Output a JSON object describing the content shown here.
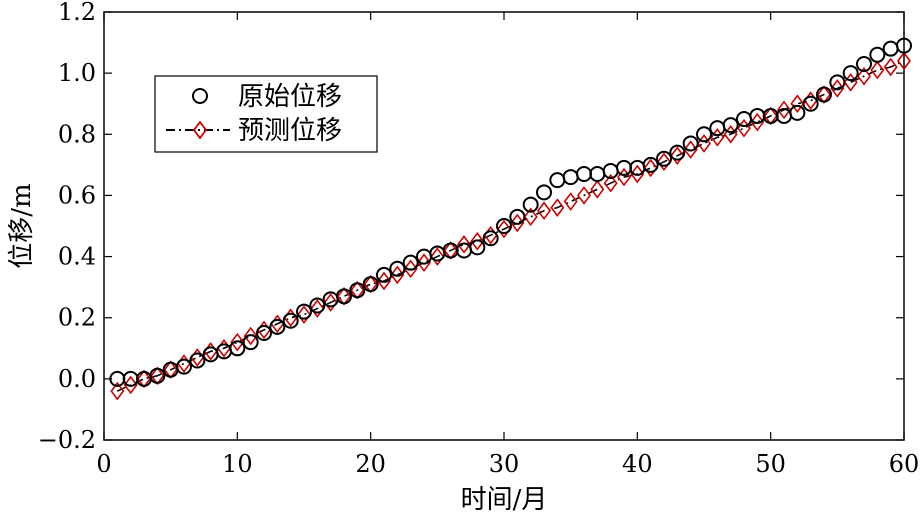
{
  "chart_data": {
    "type": "line",
    "title": "",
    "xlabel": "时间/月",
    "ylabel": "位移/m",
    "xlim": [
      0,
      60
    ],
    "ylim": [
      -0.2,
      1.2
    ],
    "xticks": [
      "0",
      "10",
      "20",
      "30",
      "40",
      "50",
      "60"
    ],
    "yticks": [
      "−0.2",
      "0.0",
      "0.2",
      "0.4",
      "0.6",
      "0.8",
      "1.0",
      "1.2"
    ],
    "grid": false,
    "legend_position": "top-left",
    "series": [
      {
        "name": "原始位移",
        "marker": "circle",
        "line": "none",
        "color": "#000000",
        "x": [
          1,
          2,
          3,
          4,
          5,
          6,
          7,
          8,
          9,
          10,
          11,
          12,
          13,
          14,
          15,
          16,
          17,
          18,
          19,
          20,
          21,
          22,
          23,
          24,
          25,
          26,
          27,
          28,
          29,
          30,
          31,
          32,
          33,
          34,
          35,
          36,
          37,
          38,
          39,
          40,
          41,
          42,
          43,
          44,
          45,
          46,
          47,
          48,
          49,
          50,
          51,
          52,
          53,
          54,
          55,
          56,
          57,
          58,
          59,
          60
        ],
        "y": [
          0.0,
          0.0,
          0.0,
          0.01,
          0.03,
          0.04,
          0.06,
          0.08,
          0.09,
          0.1,
          0.12,
          0.15,
          0.17,
          0.19,
          0.22,
          0.24,
          0.26,
          0.27,
          0.29,
          0.31,
          0.34,
          0.36,
          0.38,
          0.4,
          0.41,
          0.42,
          0.42,
          0.43,
          0.46,
          0.5,
          0.53,
          0.57,
          0.61,
          0.65,
          0.66,
          0.67,
          0.67,
          0.68,
          0.69,
          0.69,
          0.7,
          0.72,
          0.74,
          0.77,
          0.8,
          0.82,
          0.83,
          0.85,
          0.86,
          0.86,
          0.86,
          0.87,
          0.9,
          0.93,
          0.97,
          1.0,
          1.03,
          1.06,
          1.08,
          1.09
        ]
      },
      {
        "name": "预测位移",
        "marker": "diamond",
        "line": "dash-dot",
        "color": "#cc0000",
        "line_color": "#000000",
        "x": [
          1,
          2,
          3,
          4,
          5,
          6,
          7,
          8,
          9,
          10,
          11,
          12,
          13,
          14,
          15,
          16,
          17,
          18,
          19,
          20,
          21,
          22,
          23,
          24,
          25,
          26,
          27,
          28,
          29,
          30,
          31,
          32,
          33,
          34,
          35,
          36,
          37,
          38,
          39,
          40,
          41,
          42,
          43,
          44,
          45,
          46,
          47,
          48,
          49,
          50,
          51,
          52,
          53,
          54,
          55,
          56,
          57,
          58,
          59,
          60
        ],
        "y": [
          -0.04,
          -0.02,
          0.0,
          0.01,
          0.03,
          0.05,
          0.07,
          0.09,
          0.1,
          0.12,
          0.14,
          0.16,
          0.18,
          0.2,
          0.21,
          0.23,
          0.25,
          0.27,
          0.29,
          0.31,
          0.32,
          0.34,
          0.36,
          0.38,
          0.4,
          0.42,
          0.44,
          0.45,
          0.47,
          0.49,
          0.51,
          0.53,
          0.55,
          0.56,
          0.58,
          0.6,
          0.62,
          0.64,
          0.66,
          0.67,
          0.69,
          0.71,
          0.73,
          0.75,
          0.77,
          0.79,
          0.8,
          0.82,
          0.84,
          0.86,
          0.88,
          0.9,
          0.91,
          0.93,
          0.95,
          0.97,
          0.99,
          1.01,
          1.02,
          1.04
        ]
      }
    ]
  }
}
